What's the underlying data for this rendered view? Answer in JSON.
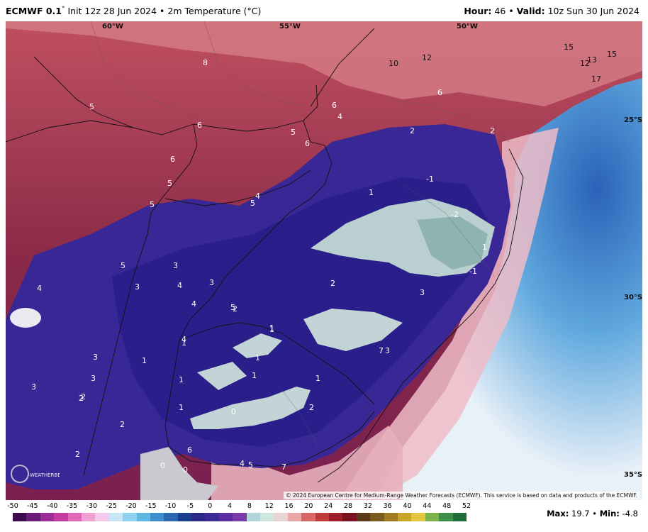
{
  "header": {
    "model": "ECMWF 0.1",
    "degree": "°",
    "init_text": "Init 12z 28 Jun 2024 • 2m Temperature (°C)",
    "hour_label": "Hour:",
    "hour_value": "46",
    "valid_label": "Valid:",
    "valid_value": "10z Sun 30 Jun 2024",
    "bullet": "•"
  },
  "map": {
    "lon_labels": [
      "60°W",
      "55°W",
      "50°W"
    ],
    "lat_labels": [
      "25°S",
      "30°S",
      "35°S"
    ],
    "value_labels": [
      "8",
      "10",
      "12",
      "15",
      "15",
      "12",
      "13",
      "17",
      "5",
      "6",
      "5",
      "6",
      "4",
      "6",
      "6",
      "2",
      "2",
      "5",
      "6",
      "5",
      "4",
      "5",
      "1",
      "-1",
      "-2",
      "1",
      "-1",
      "3",
      "7",
      "3",
      "3",
      "5",
      "4",
      "3",
      "4",
      "4",
      "3",
      "5",
      "2",
      "2",
      "1",
      "1",
      "1",
      "4",
      "3",
      "1",
      "1",
      "1",
      "1",
      "1",
      "1",
      "0",
      "2",
      "2",
      "2",
      "2",
      "0",
      "0",
      "6",
      "4",
      "5",
      "7",
      "2",
      "3",
      "3"
    ],
    "copyright": "© 2024 European Centre for Medium-Range Weather Forecasts (ECMWF). This service is based on data and products of the ECMWF.",
    "logo_text": "WEATHERBELL"
  },
  "legend": {
    "ticks": [
      "-50",
      "-45",
      "-40",
      "-35",
      "-30",
      "-25",
      "-20",
      "-15",
      "-10",
      "-5",
      "0",
      "4",
      "8",
      "12",
      "16",
      "20",
      "24",
      "28",
      "32",
      "36",
      "40",
      "44",
      "48",
      "52"
    ],
    "colors": [
      "#3d0a4f",
      "#6a1b7a",
      "#9b2d96",
      "#c33c9e",
      "#e06ab8",
      "#f0a0d2",
      "#f4c8e8",
      "#c6e6f6",
      "#8fd2ef",
      "#5fb7e3",
      "#3f8fcf",
      "#2c66b0",
      "#1a3f8c",
      "#2b2a8a",
      "#3d2a9a",
      "#5b2fa3",
      "#7a3aa8",
      "#b4d4dc",
      "#cfe5e0",
      "#e7d3d3",
      "#e8a8a8",
      "#d86868",
      "#c03a3a",
      "#9c1e2a",
      "#7a1020",
      "#5a3a18",
      "#7b5a20",
      "#a07a20",
      "#c9a52a",
      "#e2c640",
      "#7cb24a",
      "#3c8e4a",
      "#1f6e3a"
    ]
  },
  "stats": {
    "max_label": "Max:",
    "max_value": "19.7",
    "min_label": "Min:",
    "min_value": "-4.8",
    "bullet": "•"
  }
}
